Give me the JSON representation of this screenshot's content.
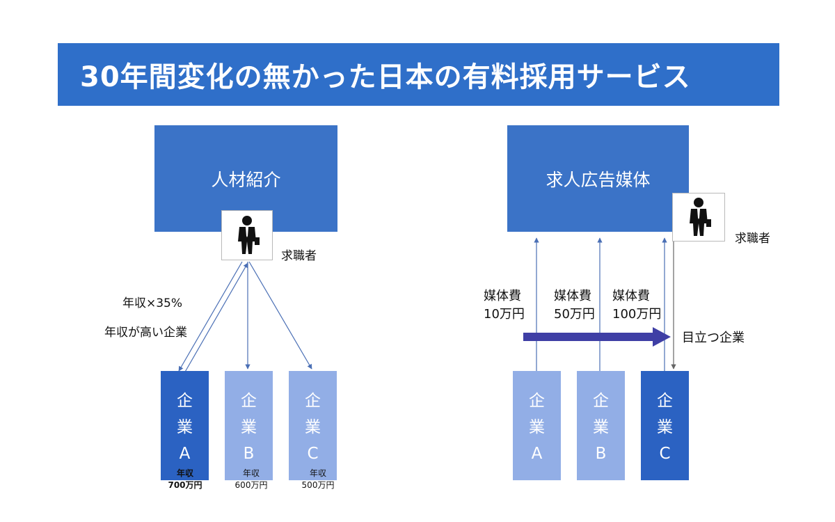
{
  "title": "30年間変化の無かった日本の有料採用サービス",
  "left": {
    "header": "人材紹介",
    "person_icon": "businessman-icon",
    "seeker_label": "求職者",
    "fee_label": "年収×35%",
    "target_label": "年収が高い企業",
    "companies": [
      {
        "line1": "企",
        "line2": "業",
        "letter": "A",
        "salary_label": "年収",
        "salary": "700万円"
      },
      {
        "line1": "企",
        "line2": "業",
        "letter": "B",
        "salary_label": "年収",
        "salary": "600万円"
      },
      {
        "line1": "企",
        "line2": "業",
        "letter": "C",
        "salary_label": "年収",
        "salary": "500万円"
      }
    ]
  },
  "right": {
    "header": "求人広告媒体",
    "person_icon": "businessman-icon",
    "seeker_label": "求職者",
    "fees": [
      {
        "line1": "媒体費",
        "line2": "10万円"
      },
      {
        "line1": "媒体費",
        "line2": "50万円"
      },
      {
        "line1": "媒体費",
        "line2": "100万円"
      }
    ],
    "arrow_label": "目立つ企業",
    "companies": [
      {
        "line1": "企",
        "line2": "業",
        "letter": "A"
      },
      {
        "line1": "企",
        "line2": "業",
        "letter": "B"
      },
      {
        "line1": "企",
        "line2": "業",
        "letter": "C"
      }
    ]
  },
  "colors": {
    "title_bg": "#2f6fc9",
    "box_dark": "#2b62c2",
    "box_light": "#92aee6",
    "arrow": "#3f3fa5"
  }
}
